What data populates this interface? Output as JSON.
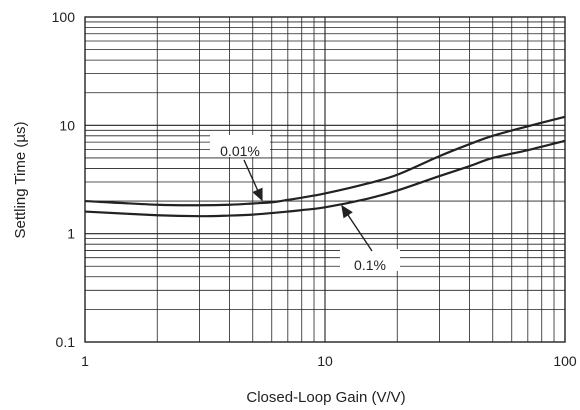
{
  "chart_data": {
    "type": "line",
    "xlabel": "Closed-Loop Gain (V/V)",
    "ylabel": "Settling Time (µs)",
    "xscale": "log",
    "yscale": "log",
    "xlim": [
      1,
      100
    ],
    "ylim": [
      0.1,
      100
    ],
    "grid": true,
    "x_tick_labels": [
      "1",
      "10",
      "100"
    ],
    "y_tick_labels": [
      "0.1",
      "1",
      "10",
      "100"
    ],
    "series": [
      {
        "name": "0.01%",
        "x": [
          1,
          2,
          3,
          4,
          5,
          6,
          7,
          8,
          10,
          15,
          20,
          30,
          40,
          50,
          70,
          100
        ],
        "y": [
          2.0,
          1.85,
          1.83,
          1.85,
          1.9,
          1.95,
          2.05,
          2.15,
          2.35,
          2.9,
          3.5,
          5.2,
          6.7,
          8.0,
          9.8,
          12.0
        ]
      },
      {
        "name": "0.1%",
        "x": [
          1,
          2,
          3,
          4,
          5,
          6,
          7,
          8,
          10,
          15,
          20,
          30,
          40,
          50,
          70,
          100
        ],
        "y": [
          1.6,
          1.48,
          1.45,
          1.47,
          1.5,
          1.55,
          1.6,
          1.65,
          1.75,
          2.1,
          2.5,
          3.4,
          4.2,
          5.0,
          5.9,
          7.2
        ]
      }
    ],
    "annotations": [
      {
        "text": "0.01%",
        "series": "0.01%"
      },
      {
        "text": "0.1%",
        "series": "0.1%"
      }
    ],
    "line_color": "#222222",
    "grid_color": "#222222"
  }
}
